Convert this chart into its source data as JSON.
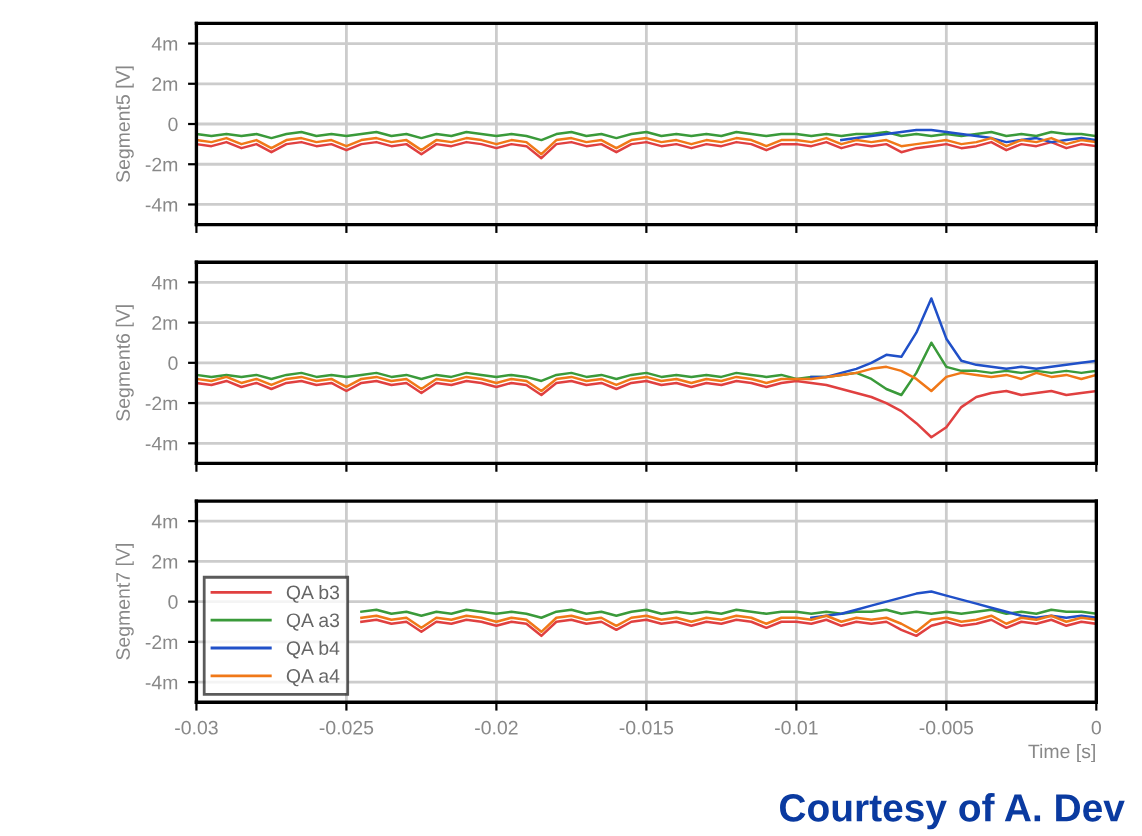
{
  "chart_data": [
    {
      "type": "line",
      "ylabel": "Segment5 [V]",
      "xlim": [
        -0.03,
        0
      ],
      "ylim": [
        -5,
        5
      ],
      "xticks": [
        {
          "value": -0.03,
          "label": null
        },
        {
          "value": -0.025,
          "label": null
        },
        {
          "value": -0.02,
          "label": null
        },
        {
          "value": -0.015,
          "label": null
        },
        {
          "value": -0.01,
          "label": null
        },
        {
          "value": -0.005,
          "label": null
        },
        {
          "value": 0,
          "label": null
        }
      ],
      "yticks": [
        {
          "value": -4,
          "label": "-4m"
        },
        {
          "value": -2,
          "label": "-2m"
        },
        0,
        {
          "value": 2,
          "label": "2m"
        },
        {
          "value": 4,
          "label": "4m"
        }
      ],
      "grid": true,
      "tick_labels": "y",
      "x": [
        -0.03,
        -0.0295,
        -0.029,
        -0.0285,
        -0.028,
        -0.0275,
        -0.027,
        -0.0265,
        -0.026,
        -0.0255,
        -0.025,
        -0.0245,
        -0.024,
        -0.0235,
        -0.023,
        -0.0225,
        -0.022,
        -0.0215,
        -0.021,
        -0.0205,
        -0.02,
        -0.0195,
        -0.019,
        -0.0185,
        -0.018,
        -0.0175,
        -0.017,
        -0.0165,
        -0.016,
        -0.0155,
        -0.015,
        -0.0145,
        -0.014,
        -0.0135,
        -0.013,
        -0.0125,
        -0.012,
        -0.0115,
        -0.011,
        -0.0105,
        -0.01,
        -0.0095,
        -0.009,
        -0.0085,
        -0.008,
        -0.0075,
        -0.007,
        -0.0065,
        -0.006,
        -0.0055,
        -0.005,
        -0.0045,
        -0.004,
        -0.0035,
        -0.003,
        -0.0025,
        -0.002,
        -0.0015,
        -0.001,
        -0.0005,
        0
      ],
      "series": [
        {
          "color": "#e04040",
          "values": [
            -1.0,
            -1.1,
            -0.9,
            -1.2,
            -1.0,
            -1.4,
            -1.0,
            -0.9,
            -1.1,
            -1.0,
            -1.3,
            -1.0,
            -0.9,
            -1.1,
            -1.0,
            -1.5,
            -1.0,
            -1.1,
            -0.9,
            -1.0,
            -1.2,
            -1.0,
            -1.1,
            -1.7,
            -1.0,
            -0.9,
            -1.1,
            -1.0,
            -1.4,
            -1.0,
            -0.9,
            -1.1,
            -1.0,
            -1.2,
            -1.0,
            -1.1,
            -0.9,
            -1.0,
            -1.3,
            -1.0,
            -1.0,
            -1.1,
            -0.9,
            -1.2,
            -1.0,
            -1.1,
            -1.0,
            -1.4,
            -1.2,
            -1.1,
            -1.0,
            -1.2,
            -1.1,
            -0.9,
            -1.3,
            -1.0,
            -1.1,
            -0.9,
            -1.2,
            -1.0,
            -1.1
          ]
        },
        {
          "color": "#3a9a3a",
          "values": [
            -0.5,
            -0.6,
            -0.5,
            -0.6,
            -0.5,
            -0.7,
            -0.5,
            -0.4,
            -0.6,
            -0.5,
            -0.6,
            -0.5,
            -0.4,
            -0.6,
            -0.5,
            -0.7,
            -0.5,
            -0.6,
            -0.4,
            -0.5,
            -0.6,
            -0.5,
            -0.6,
            -0.8,
            -0.5,
            -0.4,
            -0.6,
            -0.5,
            -0.7,
            -0.5,
            -0.4,
            -0.6,
            -0.5,
            -0.6,
            -0.5,
            -0.6,
            -0.4,
            -0.5,
            -0.6,
            -0.5,
            -0.5,
            -0.6,
            -0.5,
            -0.6,
            -0.5,
            -0.5,
            -0.4,
            -0.6,
            -0.5,
            -0.6,
            -0.5,
            -0.6,
            -0.5,
            -0.4,
            -0.6,
            -0.5,
            -0.6,
            -0.4,
            -0.5,
            -0.5,
            -0.6
          ]
        },
        {
          "color": "#2050c8",
          "values": [
            null,
            null,
            null,
            null,
            null,
            null,
            null,
            null,
            null,
            null,
            null,
            null,
            null,
            null,
            null,
            null,
            null,
            null,
            null,
            null,
            null,
            null,
            null,
            null,
            null,
            null,
            null,
            null,
            null,
            null,
            null,
            null,
            null,
            null,
            null,
            null,
            null,
            null,
            null,
            null,
            null,
            null,
            null,
            -0.8,
            -0.7,
            -0.6,
            -0.5,
            -0.4,
            -0.3,
            -0.3,
            -0.4,
            -0.5,
            -0.6,
            -0.7,
            -0.9,
            -0.8,
            -0.7,
            -0.9,
            -0.8,
            -0.7,
            -0.8
          ]
        },
        {
          "color": "#f07818",
          "values": [
            -0.8,
            -0.9,
            -0.7,
            -1.0,
            -0.8,
            -1.2,
            -0.8,
            -0.7,
            -0.9,
            -0.8,
            -1.1,
            -0.8,
            -0.7,
            -0.9,
            -0.8,
            -1.3,
            -0.8,
            -0.9,
            -0.7,
            -0.8,
            -1.0,
            -0.8,
            -0.9,
            -1.5,
            -0.8,
            -0.7,
            -0.9,
            -0.8,
            -1.2,
            -0.8,
            -0.7,
            -0.9,
            -0.8,
            -1.0,
            -0.8,
            -0.9,
            -0.7,
            -0.8,
            -1.1,
            -0.8,
            -0.8,
            -0.9,
            -0.7,
            -1.0,
            -0.8,
            -0.9,
            -0.8,
            -1.1,
            -1.0,
            -0.9,
            -0.8,
            -1.0,
            -0.9,
            -0.7,
            -1.1,
            -0.8,
            -0.9,
            -0.7,
            -1.0,
            -0.8,
            -0.9
          ]
        }
      ]
    },
    {
      "type": "line",
      "ylabel": "Segment6 [V]",
      "xlim": [
        -0.03,
        0
      ],
      "ylim": [
        -5,
        5
      ],
      "xticks": [
        {
          "value": -0.03,
          "label": null
        },
        {
          "value": -0.025,
          "label": null
        },
        {
          "value": -0.02,
          "label": null
        },
        {
          "value": -0.015,
          "label": null
        },
        {
          "value": -0.01,
          "label": null
        },
        {
          "value": -0.005,
          "label": null
        },
        {
          "value": 0,
          "label": null
        }
      ],
      "yticks": [
        {
          "value": -4,
          "label": "-4m"
        },
        {
          "value": -2,
          "label": "-2m"
        },
        0,
        {
          "value": 2,
          "label": "2m"
        },
        {
          "value": 4,
          "label": "4m"
        }
      ],
      "grid": true,
      "tick_labels": "y",
      "x": [
        -0.03,
        -0.0295,
        -0.029,
        -0.0285,
        -0.028,
        -0.0275,
        -0.027,
        -0.0265,
        -0.026,
        -0.0255,
        -0.025,
        -0.0245,
        -0.024,
        -0.0235,
        -0.023,
        -0.0225,
        -0.022,
        -0.0215,
        -0.021,
        -0.0205,
        -0.02,
        -0.0195,
        -0.019,
        -0.0185,
        -0.018,
        -0.0175,
        -0.017,
        -0.0165,
        -0.016,
        -0.0155,
        -0.015,
        -0.0145,
        -0.014,
        -0.0135,
        -0.013,
        -0.0125,
        -0.012,
        -0.0115,
        -0.011,
        -0.0105,
        -0.01,
        -0.0095,
        -0.009,
        -0.0085,
        -0.008,
        -0.0075,
        -0.007,
        -0.0065,
        -0.006,
        -0.0055,
        -0.005,
        -0.0045,
        -0.004,
        -0.0035,
        -0.003,
        -0.0025,
        -0.002,
        -0.0015,
        -0.001,
        -0.0005,
        0
      ],
      "series": [
        {
          "color": "#e04040",
          "values": [
            -1.0,
            -1.1,
            -0.9,
            -1.2,
            -1.0,
            -1.3,
            -1.0,
            -0.9,
            -1.1,
            -1.0,
            -1.4,
            -1.0,
            -0.9,
            -1.1,
            -1.0,
            -1.5,
            -1.0,
            -1.1,
            -0.9,
            -1.0,
            -1.2,
            -1.0,
            -1.1,
            -1.6,
            -1.0,
            -0.9,
            -1.1,
            -1.0,
            -1.3,
            -1.0,
            -0.9,
            -1.1,
            -1.0,
            -1.2,
            -1.0,
            -1.1,
            -0.9,
            -1.0,
            -1.2,
            -1.0,
            -0.9,
            -1.0,
            -1.1,
            -1.3,
            -1.5,
            -1.7,
            -2.0,
            -2.4,
            -3.0,
            -3.7,
            -3.2,
            -2.2,
            -1.7,
            -1.5,
            -1.4,
            -1.6,
            -1.5,
            -1.4,
            -1.6,
            -1.5,
            -1.4
          ]
        },
        {
          "color": "#3a9a3a",
          "values": [
            -0.6,
            -0.7,
            -0.6,
            -0.7,
            -0.6,
            -0.8,
            -0.6,
            -0.5,
            -0.7,
            -0.6,
            -0.7,
            -0.6,
            -0.5,
            -0.7,
            -0.6,
            -0.8,
            -0.6,
            -0.7,
            -0.5,
            -0.6,
            -0.7,
            -0.6,
            -0.7,
            -0.9,
            -0.6,
            -0.5,
            -0.7,
            -0.6,
            -0.8,
            -0.6,
            -0.5,
            -0.7,
            -0.6,
            -0.7,
            -0.6,
            -0.7,
            -0.5,
            -0.6,
            -0.7,
            -0.6,
            -0.8,
            -0.7,
            -0.7,
            -0.6,
            -0.5,
            -0.8,
            -1.3,
            -1.6,
            -0.5,
            1.0,
            -0.2,
            -0.4,
            -0.4,
            -0.5,
            -0.4,
            -0.5,
            -0.4,
            -0.5,
            -0.4,
            -0.5,
            -0.4
          ]
        },
        {
          "color": "#2050c8",
          "values": [
            null,
            null,
            null,
            null,
            null,
            null,
            null,
            null,
            null,
            null,
            null,
            null,
            null,
            null,
            null,
            null,
            null,
            null,
            null,
            null,
            null,
            null,
            null,
            null,
            null,
            null,
            null,
            null,
            null,
            null,
            null,
            null,
            null,
            null,
            null,
            null,
            null,
            null,
            null,
            null,
            null,
            -0.7,
            -0.7,
            -0.5,
            -0.3,
            0,
            0.4,
            0.3,
            1.5,
            3.2,
            1.2,
            0.1,
            -0.1,
            -0.2,
            -0.3,
            -0.2,
            -0.3,
            -0.2,
            -0.1,
            0,
            0.1
          ]
        },
        {
          "color": "#f07818",
          "values": [
            -0.8,
            -0.9,
            -0.7,
            -1.0,
            -0.8,
            -1.1,
            -0.8,
            -0.7,
            -0.9,
            -0.8,
            -1.2,
            -0.8,
            -0.7,
            -0.9,
            -0.8,
            -1.3,
            -0.8,
            -0.9,
            -0.7,
            -0.8,
            -1.0,
            -0.8,
            -0.9,
            -1.4,
            -0.8,
            -0.7,
            -0.9,
            -0.8,
            -1.1,
            -0.8,
            -0.7,
            -0.9,
            -0.8,
            -1.0,
            -0.8,
            -0.9,
            -0.7,
            -0.8,
            -1.0,
            -0.8,
            -0.8,
            -0.8,
            -0.7,
            -0.6,
            -0.5,
            -0.3,
            -0.2,
            -0.4,
            -0.8,
            -1.4,
            -0.7,
            -0.5,
            -0.6,
            -0.7,
            -0.6,
            -0.8,
            -0.5,
            -0.7,
            -0.6,
            -0.8,
            -0.6
          ]
        }
      ]
    },
    {
      "type": "line",
      "ylabel": "Segment7 [V]",
      "xlabel": "Time [s]",
      "xlim": [
        -0.03,
        0
      ],
      "ylim": [
        -5,
        5
      ],
      "xticks": [
        {
          "value": -0.03,
          "label": "-0.03"
        },
        {
          "value": -0.025,
          "label": "-0.025"
        },
        {
          "value": -0.02,
          "label": "-0.02"
        },
        {
          "value": -0.015,
          "label": "-0.015"
        },
        {
          "value": -0.01,
          "label": "-0.01"
        },
        {
          "value": -0.005,
          "label": "-0.005"
        },
        0
      ],
      "yticks": [
        {
          "value": -4,
          "label": "-4m"
        },
        {
          "value": -2,
          "label": "-2m"
        },
        0,
        {
          "value": 2,
          "label": "2m"
        },
        {
          "value": 4,
          "label": "4m"
        }
      ],
      "grid": true,
      "legend": "lower left",
      "annotations": [
        "Courtesy of A. Dev"
      ],
      "x": [
        -0.0245,
        -0.024,
        -0.0235,
        -0.023,
        -0.0225,
        -0.022,
        -0.0215,
        -0.021,
        -0.0205,
        -0.02,
        -0.0195,
        -0.019,
        -0.0185,
        -0.018,
        -0.0175,
        -0.017,
        -0.0165,
        -0.016,
        -0.0155,
        -0.015,
        -0.0145,
        -0.014,
        -0.0135,
        -0.013,
        -0.0125,
        -0.012,
        -0.0115,
        -0.011,
        -0.0105,
        -0.01,
        -0.0095,
        -0.009,
        -0.0085,
        -0.008,
        -0.0075,
        -0.007,
        -0.0065,
        -0.006,
        -0.0055,
        -0.005,
        -0.0045,
        -0.004,
        -0.0035,
        -0.003,
        -0.0025,
        -0.002,
        -0.0015,
        -0.001,
        -0.0005,
        0
      ],
      "series": [
        {
          "name": "QA b3",
          "color": "#e04040",
          "values": [
            -1.0,
            -0.9,
            -1.1,
            -1.0,
            -1.5,
            -1.0,
            -1.1,
            -0.9,
            -1.0,
            -1.2,
            -1.0,
            -1.1,
            -1.7,
            -1.0,
            -0.9,
            -1.1,
            -1.0,
            -1.4,
            -1.0,
            -0.9,
            -1.1,
            -1.0,
            -1.2,
            -1.0,
            -1.1,
            -0.9,
            -1.0,
            -1.3,
            -1.0,
            -1.0,
            -1.1,
            -0.9,
            -1.2,
            -1.0,
            -1.1,
            -1.0,
            -1.4,
            -1.7,
            -1.2,
            -1.0,
            -1.2,
            -1.1,
            -0.9,
            -1.3,
            -1.0,
            -1.1,
            -0.9,
            -1.2,
            -1.0,
            -1.1
          ]
        },
        {
          "name": "QA a3",
          "color": "#3a9a3a",
          "values": [
            -0.5,
            -0.4,
            -0.6,
            -0.5,
            -0.7,
            -0.5,
            -0.6,
            -0.4,
            -0.5,
            -0.6,
            -0.5,
            -0.6,
            -0.8,
            -0.5,
            -0.4,
            -0.6,
            -0.5,
            -0.7,
            -0.5,
            -0.4,
            -0.6,
            -0.5,
            -0.6,
            -0.5,
            -0.6,
            -0.4,
            -0.5,
            -0.6,
            -0.5,
            -0.5,
            -0.6,
            -0.5,
            -0.6,
            -0.5,
            -0.5,
            -0.4,
            -0.6,
            -0.5,
            -0.6,
            -0.5,
            -0.6,
            -0.5,
            -0.4,
            -0.6,
            -0.5,
            -0.6,
            -0.4,
            -0.5,
            -0.5,
            -0.6
          ]
        },
        {
          "name": "QA b4",
          "color": "#2050c8",
          "values": [
            null,
            null,
            null,
            null,
            null,
            null,
            null,
            null,
            null,
            null,
            null,
            null,
            null,
            null,
            null,
            null,
            null,
            null,
            null,
            null,
            null,
            null,
            null,
            null,
            null,
            null,
            null,
            null,
            null,
            null,
            -0.8,
            -0.7,
            -0.6,
            -0.4,
            -0.2,
            0,
            0.2,
            0.4,
            0.5,
            0.3,
            0.1,
            -0.1,
            -0.3,
            -0.5,
            -0.7,
            -0.8,
            -0.7,
            -0.8,
            -0.7,
            -0.8
          ]
        },
        {
          "name": "QA a4",
          "color": "#f07818",
          "values": [
            -0.8,
            -0.7,
            -0.9,
            -0.8,
            -1.3,
            -0.8,
            -0.9,
            -0.7,
            -0.8,
            -1.0,
            -0.8,
            -0.9,
            -1.5,
            -0.8,
            -0.7,
            -0.9,
            -0.8,
            -1.2,
            -0.8,
            -0.7,
            -0.9,
            -0.8,
            -1.0,
            -0.8,
            -0.9,
            -0.7,
            -0.8,
            -1.1,
            -0.8,
            -0.8,
            -0.9,
            -0.7,
            -1.0,
            -0.8,
            -0.9,
            -0.8,
            -1.1,
            -1.5,
            -0.9,
            -0.8,
            -1.0,
            -0.9,
            -0.7,
            -1.1,
            -0.8,
            -0.9,
            -0.7,
            -1.0,
            -0.8,
            -0.9
          ]
        }
      ]
    }
  ]
}
